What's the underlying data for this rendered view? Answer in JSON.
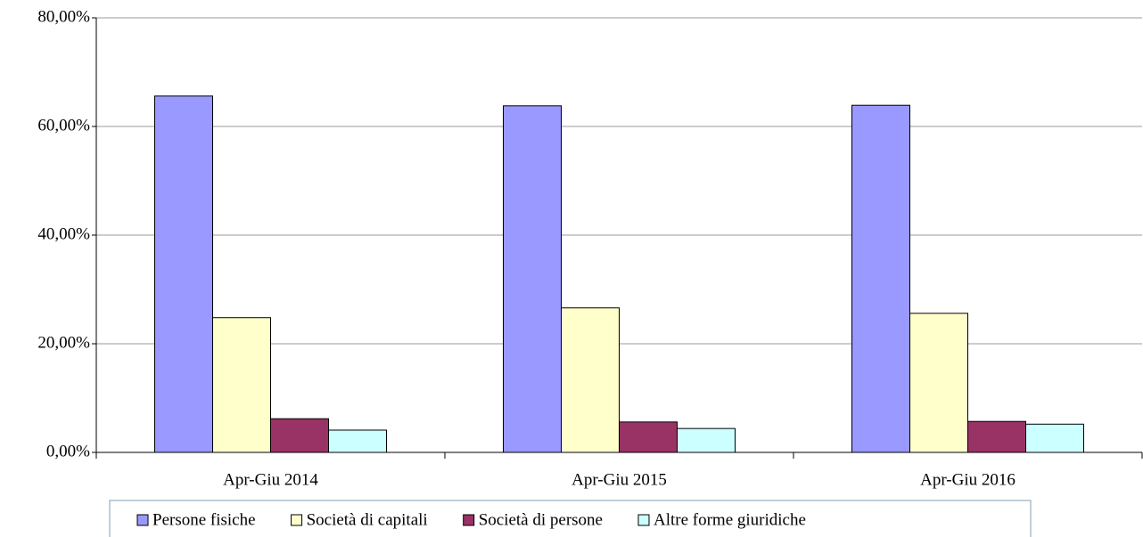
{
  "chart_data": {
    "type": "bar",
    "categories": [
      "Apr-Giu 2014",
      "Apr-Giu 2015",
      "Apr-Giu 2016"
    ],
    "series": [
      {
        "name": "Persone fisiche",
        "color": "#9999ff",
        "values": [
          65.6,
          63.8,
          63.9
        ]
      },
      {
        "name": "Società di capitali",
        "color": "#ffffcc",
        "values": [
          24.8,
          26.6,
          25.6
        ]
      },
      {
        "name": "Società di persone",
        "color": "#993366",
        "values": [
          6.2,
          5.6,
          5.7
        ]
      },
      {
        "name": "Altre forme giuridiche",
        "color": "#ccffff",
        "values": [
          4.1,
          4.4,
          5.2
        ]
      }
    ],
    "ylim": [
      0,
      80
    ],
    "yticks": [
      {
        "value": 0,
        "label": "0,00%"
      },
      {
        "value": 20,
        "label": "20,00%"
      },
      {
        "value": 40,
        "label": "40,00%"
      },
      {
        "value": 60,
        "label": "60,00%"
      },
      {
        "value": 80,
        "label": "80,00%"
      }
    ],
    "grid": true,
    "legend": "bottom"
  }
}
